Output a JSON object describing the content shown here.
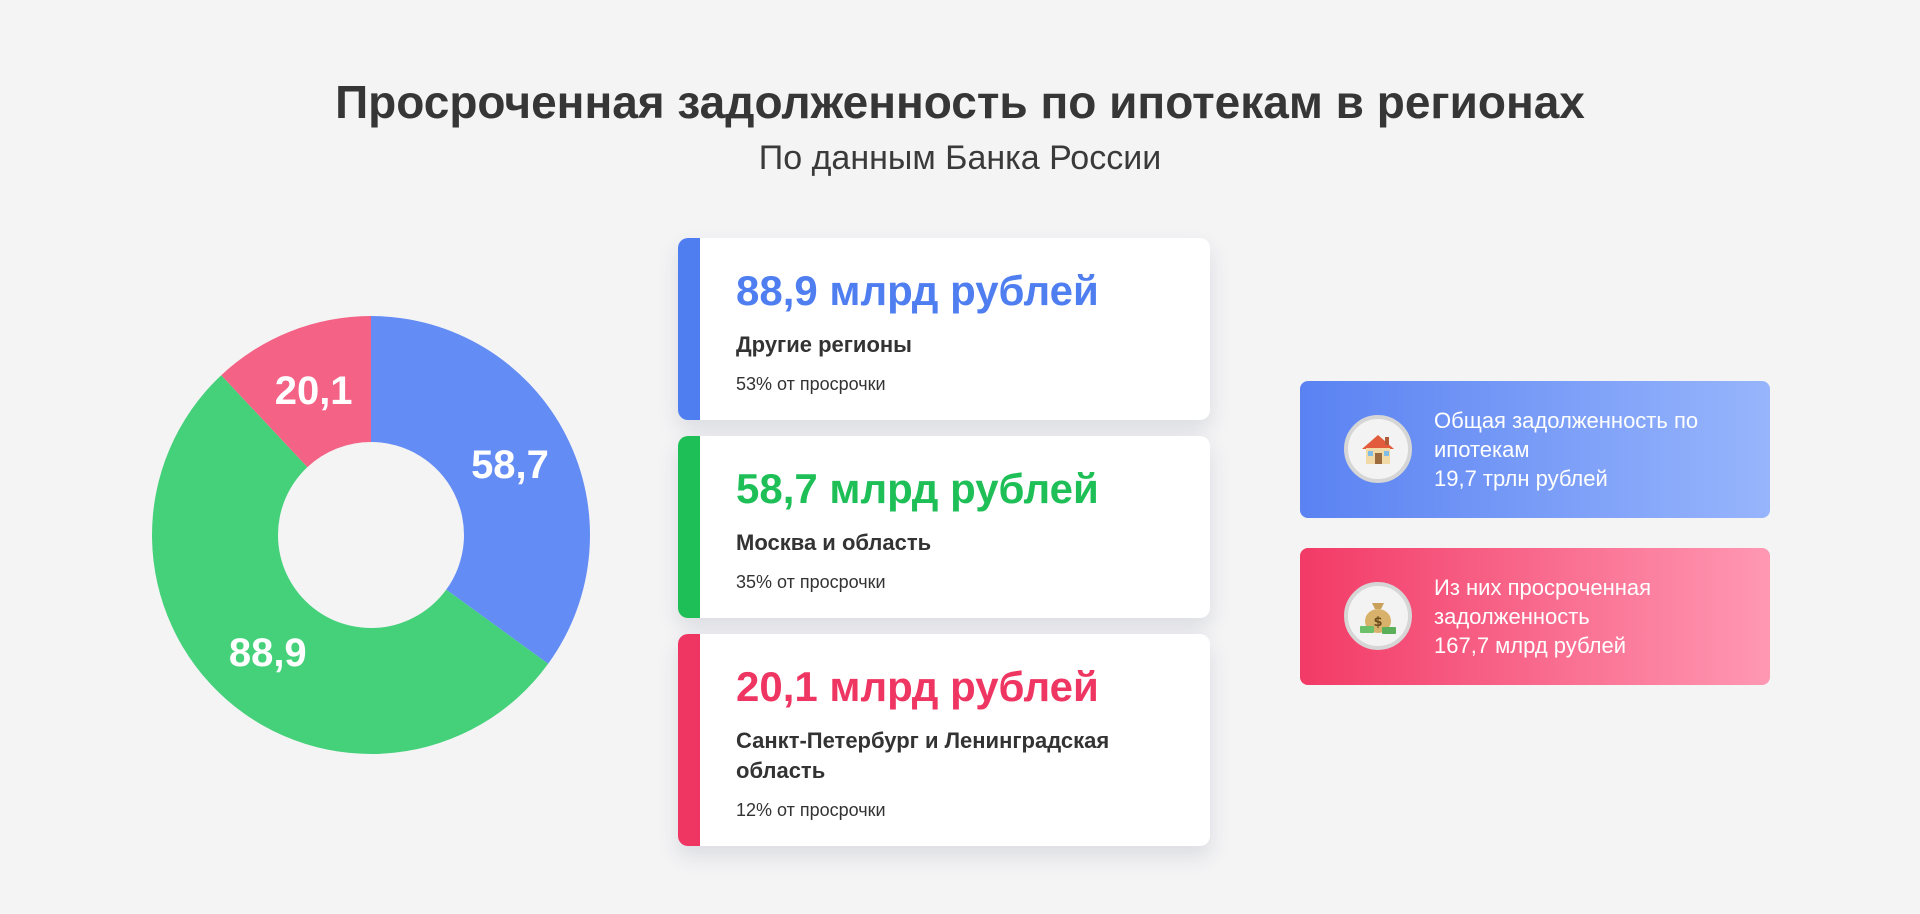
{
  "header": {
    "title": "Просроченная задолженность по ипотекам в регионах",
    "subtitle": "По данным Банка России"
  },
  "chart_data": {
    "type": "pie",
    "style": "donut",
    "categories": [
      "Москва и область",
      "Другие регионы",
      "Санкт-Петербург и Ленинградская область"
    ],
    "values": [
      58.7,
      88.9,
      20.1
    ],
    "labels": [
      "58,7",
      "88,9",
      "20,1"
    ],
    "colors": [
      "#638cf5",
      "#45d17a",
      "#f46286"
    ],
    "start_angle_deg": 0,
    "direction": "clockwise"
  },
  "cards": [
    {
      "value": "88,9 млрд рублей",
      "region": "Другие регионы",
      "share": "53% от просрочки",
      "color": "#4f7ef0"
    },
    {
      "value": "58,7 млрд рублей",
      "region": "Москва и область",
      "share": "35% от просрочки",
      "color": "#1fbf58"
    },
    {
      "value": "20,1 млрд рублей",
      "region": "Санкт-Петербург и Ленинградская область",
      "share": "12% от просрочки",
      "color": "#ef3663"
    }
  ],
  "info": [
    {
      "icon": "house-icon",
      "text_line1": "Общая задолженность по",
      "text_line2": "ипотекам",
      "text_line3": "19,7 трлн рублей",
      "gradient_from": "#5a82f2",
      "gradient_to": "#97b5fc"
    },
    {
      "icon": "money-bag-icon",
      "text_line1": "Из них просроченная",
      "text_line2": "задолженность",
      "text_line3": "167,7 млрд рублей",
      "gradient_from": "#f23a66",
      "gradient_to": "#ff98b3"
    }
  ]
}
